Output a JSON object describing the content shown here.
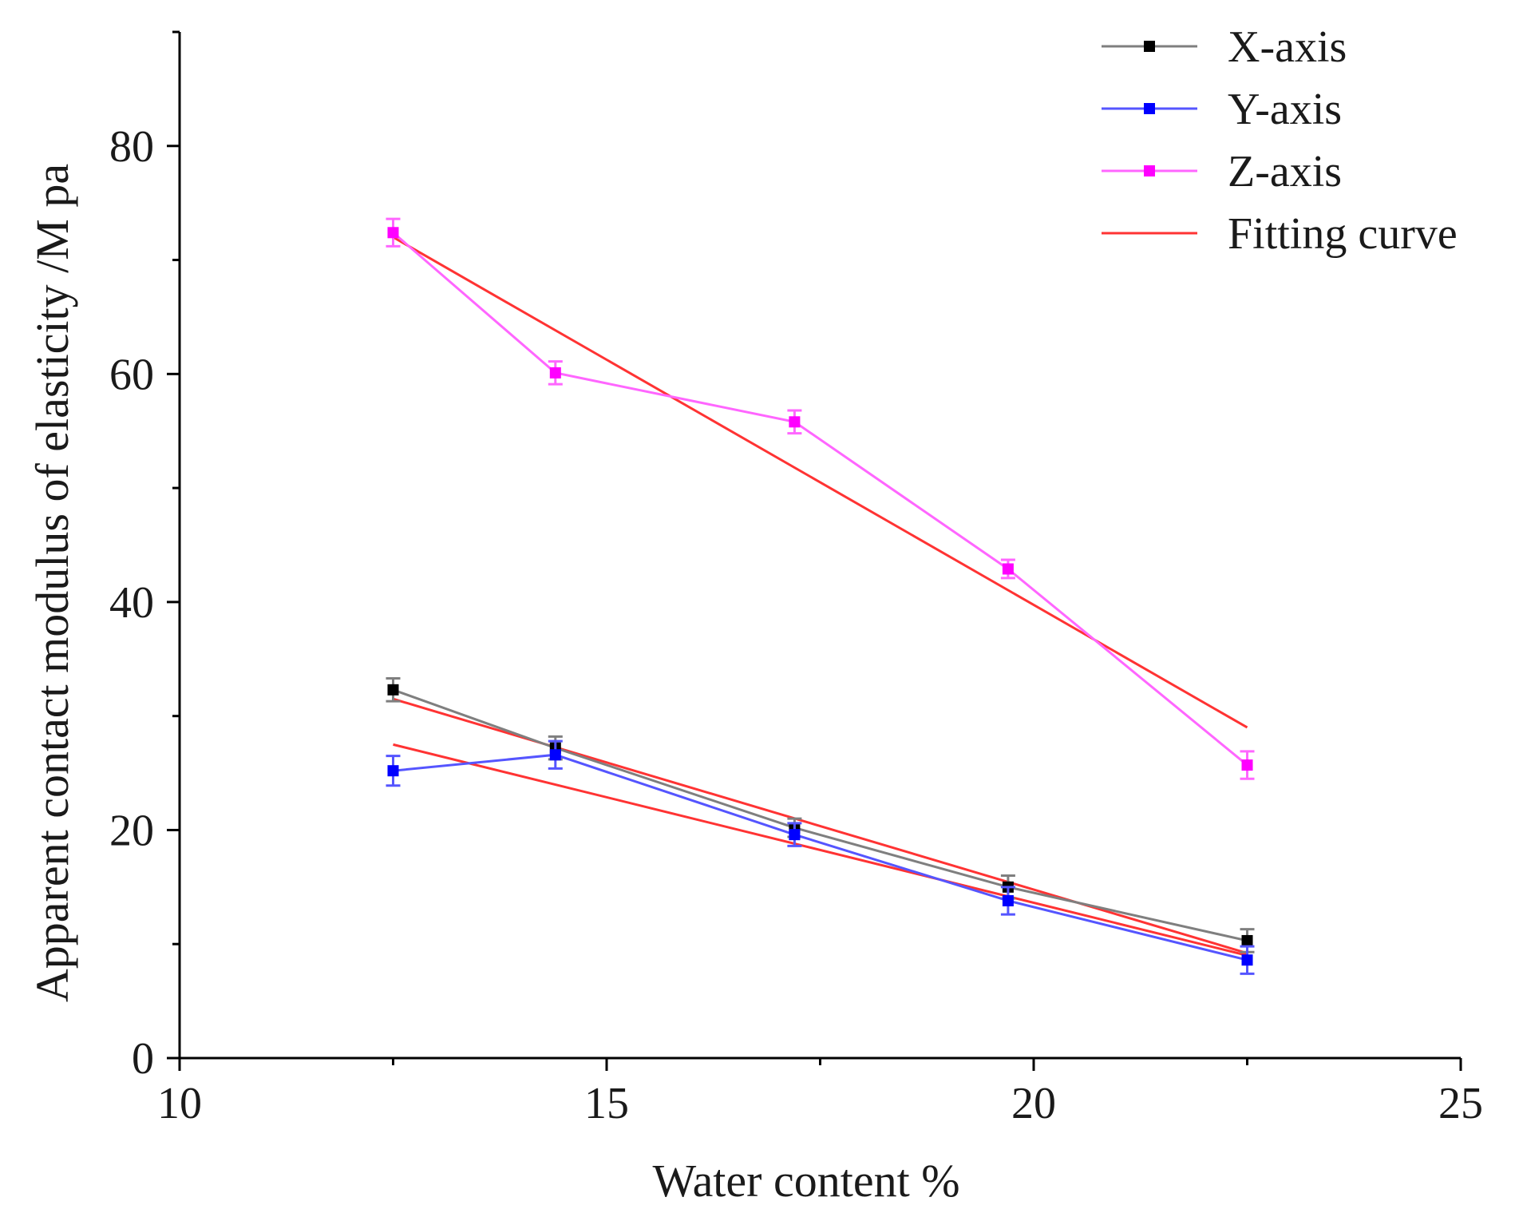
{
  "chart_data": {
    "type": "line",
    "title": "",
    "xlabel": "Water content  %",
    "ylabel": "Apparent contact modulus of elasticity /M pa",
    "xlim": [
      10,
      25
    ],
    "ylim": [
      0,
      90
    ],
    "xticks": [
      10,
      15,
      20,
      25
    ],
    "yticks": [
      0,
      20,
      40,
      60,
      80
    ],
    "x": [
      12.5,
      14.4,
      17.2,
      19.7,
      22.5
    ],
    "series": [
      {
        "name": "X-axis",
        "color": "#000000",
        "line_color": "#7f7f7f",
        "values": [
          32.3,
          27.2,
          20.2,
          15.0,
          10.3
        ],
        "errors": [
          1.0,
          1.0,
          0.8,
          1.0,
          1.0
        ]
      },
      {
        "name": "Y-axis",
        "color": "#0000ff",
        "line_color": "#5555ff",
        "values": [
          25.2,
          26.6,
          19.6,
          13.8,
          8.6
        ],
        "errors": [
          1.3,
          1.2,
          1.0,
          1.2,
          1.2
        ]
      },
      {
        "name": "Z-axis",
        "color": "#ff00ff",
        "line_color": "#ff66ff",
        "values": [
          72.4,
          60.1,
          55.8,
          42.9,
          25.7
        ],
        "errors": [
          1.2,
          1.0,
          1.0,
          0.8,
          1.2
        ]
      }
    ],
    "fitting_curves": [
      {
        "name": "Fitting curve",
        "color": "#ff3333",
        "x": [
          12.5,
          22.5
        ],
        "y": [
          72.0,
          29.0
        ]
      },
      {
        "name": "Fitting curve",
        "color": "#ff3333",
        "x": [
          12.5,
          22.5
        ],
        "y": [
          31.5,
          9.2
        ]
      },
      {
        "name": "Fitting curve",
        "color": "#ff3333",
        "x": [
          12.5,
          22.5
        ],
        "y": [
          27.5,
          9.0
        ]
      }
    ],
    "legend": {
      "position": "top-right",
      "entries": [
        {
          "label": "X-axis",
          "color": "#000000",
          "line_color": "#7f7f7f",
          "marker": true
        },
        {
          "label": "Y-axis",
          "color": "#0000ff",
          "line_color": "#5555ff",
          "marker": true
        },
        {
          "label": "Z-axis",
          "color": "#ff00ff",
          "line_color": "#ff66ff",
          "marker": true
        },
        {
          "label": "Fitting curve",
          "color": "#ff3333",
          "line_color": "#ff3333",
          "marker": false
        }
      ]
    }
  }
}
